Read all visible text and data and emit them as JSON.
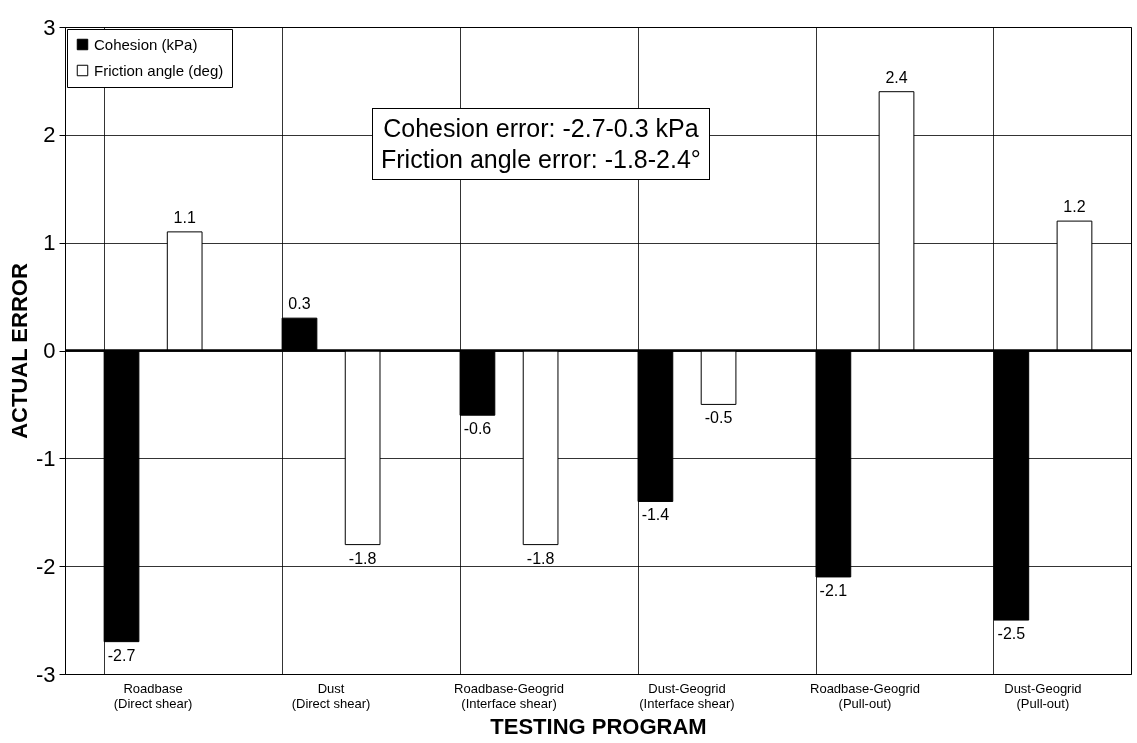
{
  "chart_data": {
    "type": "bar",
    "xlabel": "TESTING PROGRAM",
    "ylabel": "ACTUAL ERROR",
    "categories": [
      "Roadbase\n(Direct shear)",
      "Dust\n(Direct shear)",
      "Roadbase-Geogrid\n(Interface shear)",
      "Dust-Geogrid\n(Interface shear)",
      "Roadbase-Geogrid\n(Pull-out)",
      "Dust-Geogrid\n(Pull-out)"
    ],
    "series": [
      {
        "name": "Cohesion (kPa)",
        "color": "#000000",
        "values": [
          -2.7,
          0.3,
          -0.6,
          -1.4,
          -2.1,
          -2.5
        ]
      },
      {
        "name": "Friction angle (deg)",
        "color": "#ffffff",
        "values": [
          1.1,
          -1.8,
          -1.8,
          -0.5,
          2.4,
          1.2
        ]
      }
    ],
    "ylim": [
      -3,
      3
    ],
    "yticks": [
      -3,
      -2,
      -1,
      0,
      1,
      2,
      3
    ],
    "grid": true,
    "legend": "top left",
    "data_labels": true,
    "annotations": [
      "Cohesion error: -2.7-0.3 kPa",
      "Friction angle error: -1.8-2.4°"
    ]
  }
}
